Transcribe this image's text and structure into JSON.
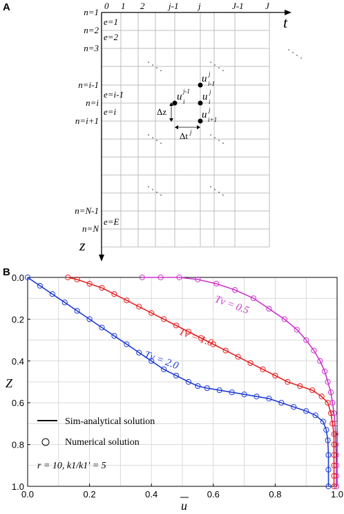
{
  "panel_a": {
    "label": "A",
    "col_labels": [
      "0",
      "1",
      "2",
      "j-1",
      "j",
      "J-1",
      "J"
    ],
    "row_n_labels": [
      "n=1",
      "n=2",
      "n=3",
      "n=i-1",
      "n=i",
      "n=i+1",
      "n=N-1",
      "n=N"
    ],
    "row_e_labels": [
      "e=1",
      "e=2",
      "e=i-1",
      "e=i",
      "e=E"
    ],
    "axis_t": "t",
    "axis_z": "z",
    "node_labels": {
      "u_im1_j": "u",
      "u_im1_j_sup": "j",
      "u_im1_j_sub": "i-1",
      "u_i_j": "u",
      "u_i_j_sup": "j",
      "u_i_j_sub": "i",
      "u_ip1_j": "u",
      "u_ip1_j_sup": "j",
      "u_ip1_j_sub": "i+1",
      "u_i_jm1": "u",
      "u_i_jm1_sup": "j-1",
      "u_i_jm1_sub": "i"
    },
    "dz_label": "Δz",
    "dt_label": "Δt",
    "dt_sup": "j"
  },
  "panel_b": {
    "label": "B",
    "legend": {
      "line_label": "Sim-analytical solution",
      "marker_label": "Numerical solution",
      "params": "r = 10, k1/k1' = 5"
    },
    "curve_labels": [
      "Tv = 0.5",
      "Tv = 1.0",
      "Tv = 2.0"
    ],
    "xlabel": "u",
    "ylabel": "Z"
  },
  "chart_data": {
    "type": "line",
    "xlabel": "u",
    "ylabel": "Z",
    "xlim": [
      0.0,
      1.0
    ],
    "ylim": [
      1.0,
      0.0
    ],
    "y_inverted": true,
    "grid": true,
    "xticks": [
      "0.0",
      "0.2",
      "0.4",
      "0.6",
      "0.8",
      "1.0"
    ],
    "yticks": [
      "0.0",
      "0.2",
      "0.4",
      "0.6",
      "0.8",
      "1.0"
    ],
    "legend": [
      "Sim-analytical solution",
      "Numerical solution"
    ],
    "series": [
      {
        "name": "Tv = 0.5",
        "color": "#cc33cc",
        "points": [
          [
            0.37,
            0.0
          ],
          [
            0.43,
            0.0
          ],
          [
            0.49,
            0.0
          ],
          [
            0.55,
            0.01
          ],
          [
            0.61,
            0.03
          ],
          [
            0.67,
            0.06
          ],
          [
            0.73,
            0.1
          ],
          [
            0.78,
            0.15
          ],
          [
            0.83,
            0.2
          ],
          [
            0.87,
            0.25
          ],
          [
            0.9,
            0.3
          ],
          [
            0.925,
            0.35
          ],
          [
            0.945,
            0.4
          ],
          [
            0.96,
            0.45
          ],
          [
            0.97,
            0.5
          ],
          [
            0.98,
            0.55
          ],
          [
            0.985,
            0.6
          ],
          [
            0.99,
            0.65
          ],
          [
            0.993,
            0.7
          ],
          [
            0.995,
            0.75
          ],
          [
            0.996,
            0.8
          ],
          [
            0.997,
            0.85
          ],
          [
            0.998,
            0.9
          ],
          [
            0.998,
            0.95
          ],
          [
            0.998,
            1.0
          ]
        ]
      },
      {
        "name": "Tv = 1.0",
        "color": "#e62020",
        "points": [
          [
            0.13,
            0.0
          ],
          [
            0.16,
            0.01
          ],
          [
            0.2,
            0.03
          ],
          [
            0.24,
            0.05
          ],
          [
            0.28,
            0.08
          ],
          [
            0.32,
            0.11
          ],
          [
            0.36,
            0.14
          ],
          [
            0.4,
            0.17
          ],
          [
            0.44,
            0.2
          ],
          [
            0.48,
            0.23
          ],
          [
            0.52,
            0.26
          ],
          [
            0.56,
            0.29
          ],
          [
            0.6,
            0.32
          ],
          [
            0.64,
            0.35
          ],
          [
            0.68,
            0.38
          ],
          [
            0.72,
            0.41
          ],
          [
            0.76,
            0.44
          ],
          [
            0.8,
            0.47
          ],
          [
            0.84,
            0.5
          ],
          [
            0.88,
            0.52
          ],
          [
            0.92,
            0.54
          ],
          [
            0.95,
            0.57
          ],
          [
            0.97,
            0.6
          ],
          [
            0.98,
            0.65
          ],
          [
            0.985,
            0.7
          ],
          [
            0.99,
            0.75
          ],
          [
            0.99,
            0.8
          ],
          [
            0.99,
            0.85
          ],
          [
            0.99,
            0.9
          ],
          [
            0.99,
            0.95
          ],
          [
            0.99,
            1.0
          ]
        ]
      },
      {
        "name": "Tv = 2.0",
        "color": "#1f3bd6",
        "points": [
          [
            0.0,
            0.0
          ],
          [
            0.04,
            0.04
          ],
          [
            0.08,
            0.08
          ],
          [
            0.12,
            0.12
          ],
          [
            0.16,
            0.16
          ],
          [
            0.2,
            0.2
          ],
          [
            0.24,
            0.24
          ],
          [
            0.28,
            0.28
          ],
          [
            0.32,
            0.32
          ],
          [
            0.36,
            0.36
          ],
          [
            0.4,
            0.4
          ],
          [
            0.44,
            0.44
          ],
          [
            0.48,
            0.47
          ],
          [
            0.52,
            0.5
          ],
          [
            0.55,
            0.52
          ],
          [
            0.58,
            0.53
          ],
          [
            0.62,
            0.54
          ],
          [
            0.66,
            0.55
          ],
          [
            0.7,
            0.56
          ],
          [
            0.74,
            0.57
          ],
          [
            0.78,
            0.58
          ],
          [
            0.82,
            0.6
          ],
          [
            0.86,
            0.62
          ],
          [
            0.9,
            0.64
          ],
          [
            0.93,
            0.66
          ],
          [
            0.955,
            0.69
          ],
          [
            0.965,
            0.73
          ],
          [
            0.97,
            0.78
          ],
          [
            0.972,
            0.85
          ],
          [
            0.972,
            0.92
          ],
          [
            0.972,
            1.0
          ]
        ]
      }
    ]
  }
}
